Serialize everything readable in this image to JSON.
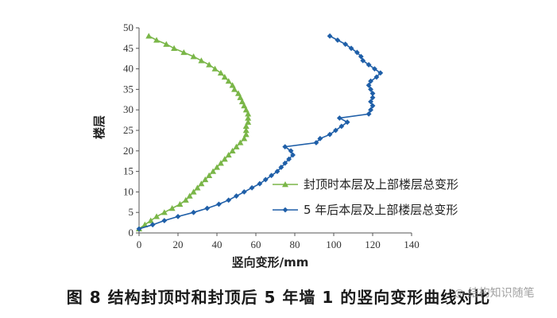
{
  "chart_data": {
    "type": "line",
    "title": "",
    "xlabel": "竖向变形/mm",
    "ylabel": "楼层",
    "xlim": [
      0,
      140
    ],
    "ylim": [
      0,
      50
    ],
    "xticks": [
      0,
      20,
      40,
      60,
      80,
      100,
      120,
      140
    ],
    "yticks": [
      0,
      5,
      10,
      15,
      20,
      25,
      30,
      35,
      40,
      45,
      50
    ],
    "grid": false,
    "legend_position": "right",
    "series": [
      {
        "name": "封顶时本层及上部楼层总变形",
        "color": "#7ab648",
        "marker": "triangle",
        "points": [
          [
            0,
            1
          ],
          [
            3,
            2
          ],
          [
            6,
            3
          ],
          [
            9,
            4
          ],
          [
            13,
            5
          ],
          [
            17,
            6
          ],
          [
            21,
            7
          ],
          [
            24,
            8
          ],
          [
            26,
            9
          ],
          [
            28,
            10
          ],
          [
            30,
            11
          ],
          [
            32,
            12
          ],
          [
            34,
            13
          ],
          [
            36,
            14
          ],
          [
            38,
            15
          ],
          [
            40,
            16
          ],
          [
            42,
            17
          ],
          [
            44,
            18
          ],
          [
            46,
            19
          ],
          [
            48,
            20
          ],
          [
            50,
            21
          ],
          [
            52,
            22
          ],
          [
            54,
            23
          ],
          [
            55,
            24
          ],
          [
            55,
            25
          ],
          [
            55,
            26
          ],
          [
            56,
            27
          ],
          [
            56,
            28
          ],
          [
            56,
            29
          ],
          [
            55,
            30
          ],
          [
            54,
            31
          ],
          [
            53,
            32
          ],
          [
            52,
            33
          ],
          [
            51,
            34
          ],
          [
            49,
            35
          ],
          [
            48,
            36
          ],
          [
            46,
            37
          ],
          [
            44,
            38
          ],
          [
            42,
            39
          ],
          [
            39,
            40
          ],
          [
            36,
            41
          ],
          [
            32,
            42
          ],
          [
            28,
            43
          ],
          [
            23,
            44
          ],
          [
            18,
            45
          ],
          [
            14,
            46
          ],
          [
            9,
            47
          ],
          [
            5,
            48
          ]
        ]
      },
      {
        "name": "5 年后本层及上部楼层总变形",
        "color": "#1f5fa8",
        "marker": "diamond",
        "points": [
          [
            0,
            1
          ],
          [
            7,
            2
          ],
          [
            13,
            3
          ],
          [
            20,
            4
          ],
          [
            28,
            5
          ],
          [
            35,
            6
          ],
          [
            41,
            7
          ],
          [
            46,
            8
          ],
          [
            50,
            9
          ],
          [
            54,
            10
          ],
          [
            58,
            11
          ],
          [
            62,
            12
          ],
          [
            65,
            13
          ],
          [
            68,
            14
          ],
          [
            71,
            15
          ],
          [
            73,
            16
          ],
          [
            75,
            17
          ],
          [
            77,
            18
          ],
          [
            79,
            19
          ],
          [
            78,
            20
          ],
          [
            75,
            21
          ],
          [
            91,
            22
          ],
          [
            93,
            23
          ],
          [
            98,
            24
          ],
          [
            101,
            25
          ],
          [
            104,
            26
          ],
          [
            107,
            27
          ],
          [
            103,
            28
          ],
          [
            118,
            29
          ],
          [
            119,
            30
          ],
          [
            120,
            31
          ],
          [
            119,
            32
          ],
          [
            120,
            33
          ],
          [
            120,
            34
          ],
          [
            119,
            35
          ],
          [
            118,
            36
          ],
          [
            119,
            37
          ],
          [
            122,
            38
          ],
          [
            124,
            39
          ],
          [
            121,
            40
          ],
          [
            118,
            41
          ],
          [
            115,
            42
          ],
          [
            114,
            43
          ],
          [
            112,
            44
          ],
          [
            109,
            45
          ],
          [
            106,
            46
          ],
          [
            102,
            47
          ],
          [
            98,
            48
          ]
        ]
      }
    ],
    "caption": "图 8   结构封顶时和封顶后 5 年墙 1 的竖向变形曲线对比"
  },
  "watermark": "结构知识随笔",
  "watermark_icon": "wechat-icon"
}
